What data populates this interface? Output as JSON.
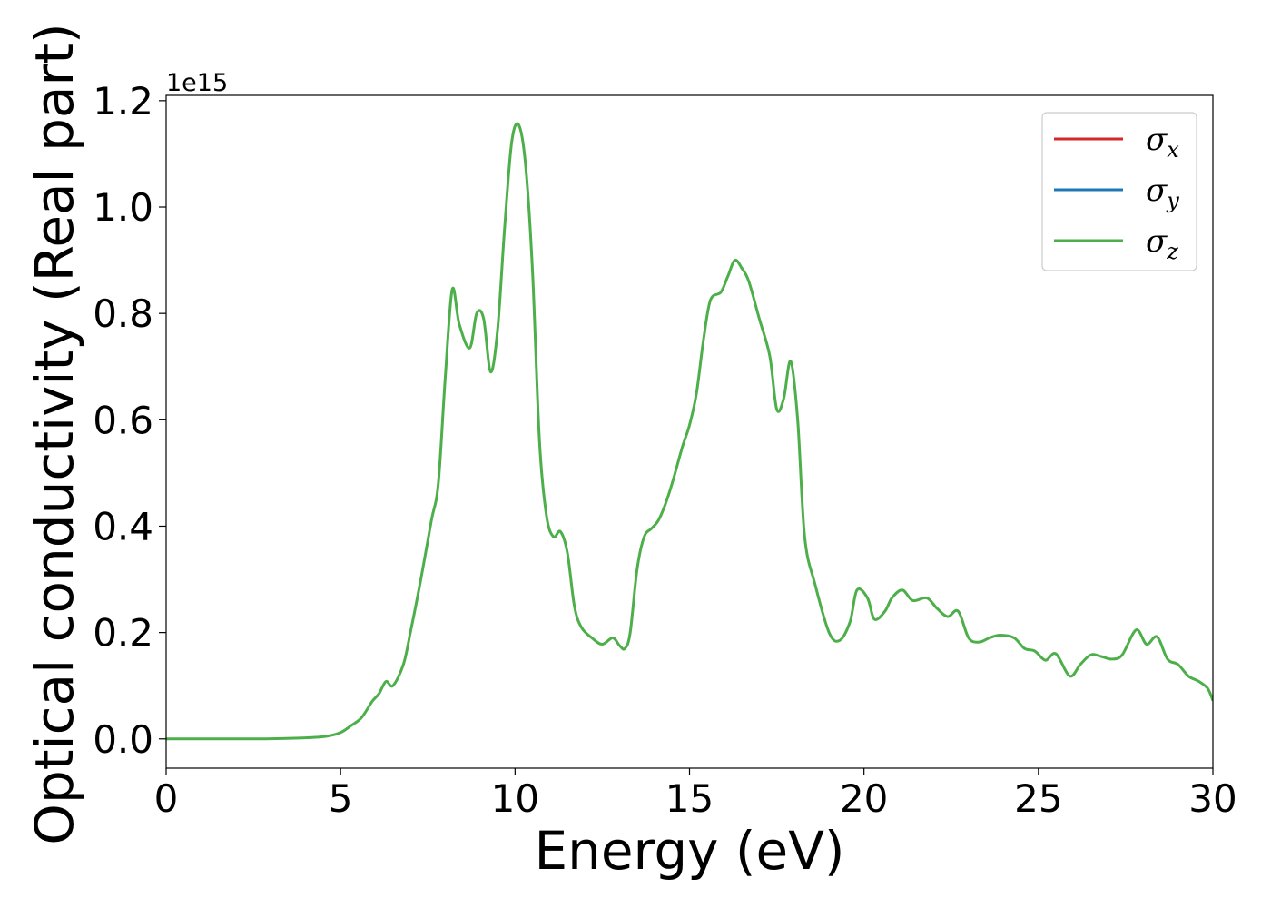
{
  "chart_data": {
    "type": "line",
    "xlabel": "Energy (eV)",
    "ylabel": "Optical conductivity (Real part)",
    "y_offset_label": "1e15",
    "xlim": [
      0,
      30
    ],
    "ylim": [
      -0.055,
      1.21
    ],
    "y_scale_factor": 1000000000000000.0,
    "x_ticks": [
      0,
      5,
      10,
      15,
      20,
      25,
      30
    ],
    "x_tick_labels": [
      "0",
      "5",
      "10",
      "15",
      "20",
      "25",
      "30"
    ],
    "y_ticks": [
      0.0,
      0.2,
      0.4,
      0.6,
      0.8,
      1.0,
      1.2
    ],
    "y_tick_labels": [
      "0.0",
      "0.2",
      "0.4",
      "0.6",
      "0.8",
      "1.0",
      "1.2"
    ],
    "grid": false,
    "legend_position": "top-right",
    "legend": [
      {
        "sym": "σ",
        "sub": "x",
        "color": "#d62728"
      },
      {
        "sym": "σ",
        "sub": "y",
        "color": "#1f77b4"
      },
      {
        "sym": "σ",
        "sub": "z",
        "color": "#4daf4a"
      }
    ],
    "series": [
      {
        "color": "#4daf4a",
        "x": [
          0,
          1,
          2,
          3,
          4,
          4.6,
          5.0,
          5.3,
          5.6,
          5.9,
          6.1,
          6.3,
          6.5,
          6.8,
          7.0,
          7.3,
          7.6,
          7.8,
          8.0,
          8.2,
          8.4,
          8.7,
          8.9,
          9.1,
          9.3,
          9.5,
          9.7,
          9.9,
          10.1,
          10.3,
          10.5,
          10.7,
          10.9,
          11.1,
          11.3,
          11.5,
          11.7,
          11.9,
          12.2,
          12.5,
          12.8,
          13.0,
          13.15,
          13.3,
          13.5,
          13.7,
          13.9,
          14.1,
          14.3,
          14.5,
          14.8,
          15.0,
          15.2,
          15.4,
          15.6,
          15.9,
          16.1,
          16.3,
          16.5,
          16.7,
          17.0,
          17.3,
          17.5,
          17.7,
          17.9,
          18.1,
          18.3,
          18.6,
          19.0,
          19.3,
          19.6,
          19.8,
          20.1,
          20.3,
          20.6,
          20.8,
          21.1,
          21.4,
          21.8,
          22.1,
          22.4,
          22.7,
          23.0,
          23.3,
          23.6,
          23.9,
          24.3,
          24.6,
          24.9,
          25.2,
          25.5,
          25.9,
          26.2,
          26.5,
          26.8,
          27.1,
          27.4,
          27.8,
          28.1,
          28.4,
          28.7,
          29.0,
          29.3,
          29.6,
          29.85,
          30.0
        ],
        "y": [
          0.0,
          0.0,
          0.0,
          0.0003,
          0.002,
          0.005,
          0.012,
          0.025,
          0.04,
          0.07,
          0.085,
          0.108,
          0.1,
          0.14,
          0.2,
          0.3,
          0.41,
          0.48,
          0.68,
          0.845,
          0.78,
          0.735,
          0.8,
          0.79,
          0.69,
          0.77,
          0.96,
          1.12,
          1.155,
          1.08,
          0.88,
          0.56,
          0.42,
          0.38,
          0.39,
          0.35,
          0.25,
          0.21,
          0.19,
          0.178,
          0.19,
          0.175,
          0.17,
          0.2,
          0.32,
          0.38,
          0.395,
          0.41,
          0.44,
          0.48,
          0.55,
          0.59,
          0.65,
          0.75,
          0.825,
          0.84,
          0.87,
          0.9,
          0.885,
          0.86,
          0.79,
          0.72,
          0.62,
          0.64,
          0.71,
          0.6,
          0.38,
          0.29,
          0.2,
          0.185,
          0.22,
          0.28,
          0.265,
          0.225,
          0.24,
          0.265,
          0.28,
          0.26,
          0.265,
          0.245,
          0.23,
          0.24,
          0.19,
          0.182,
          0.19,
          0.195,
          0.19,
          0.17,
          0.165,
          0.148,
          0.16,
          0.118,
          0.14,
          0.158,
          0.155,
          0.15,
          0.158,
          0.205,
          0.178,
          0.192,
          0.15,
          0.14,
          0.118,
          0.108,
          0.095,
          0.072
        ]
      }
    ]
  }
}
